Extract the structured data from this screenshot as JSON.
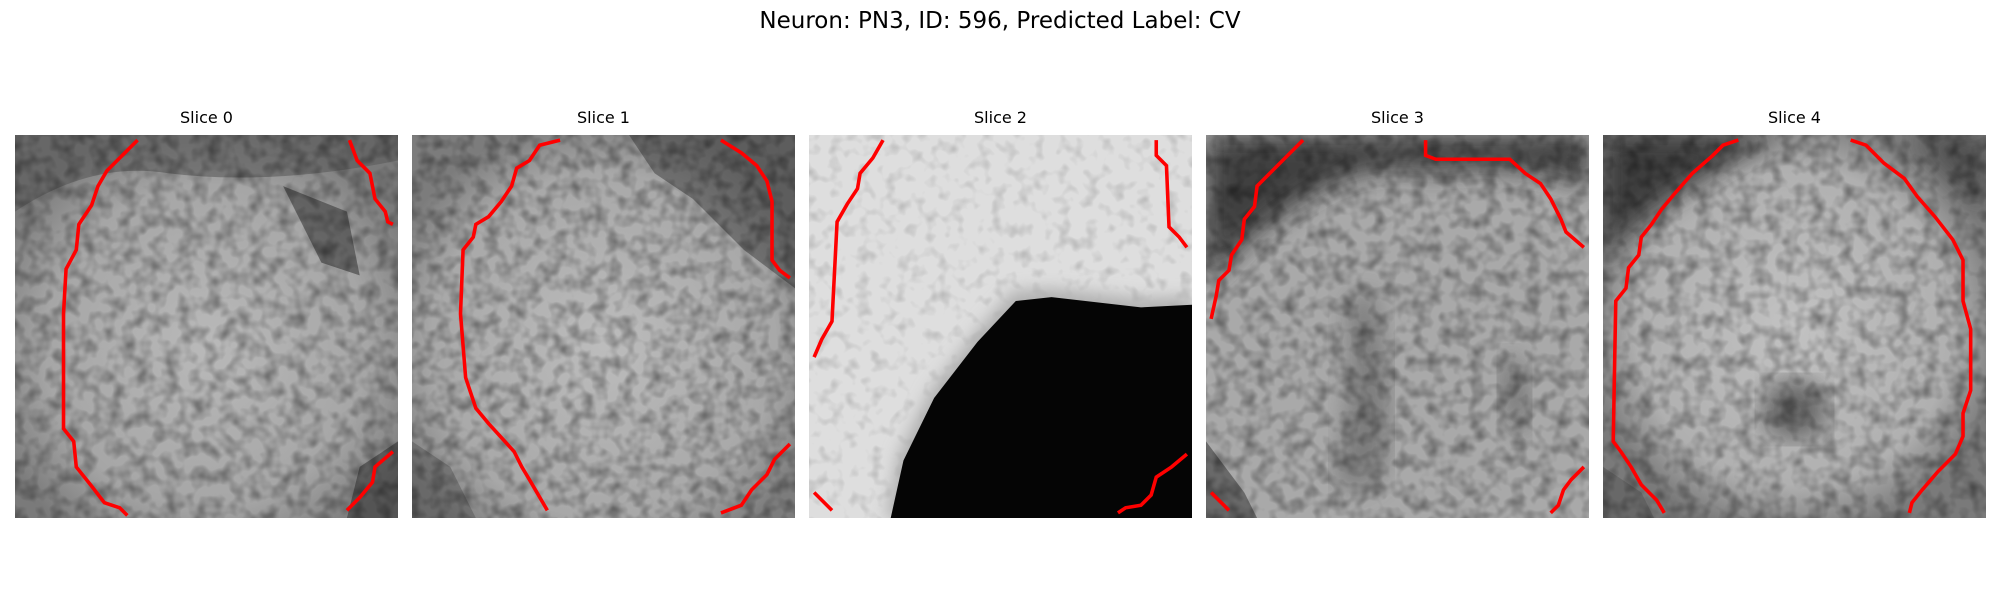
{
  "figure": {
    "title": "Neuron: PN3, ID: 596, Predicted Label: CV"
  },
  "contour_color": "#ff0000",
  "panels": [
    {
      "title": "Slice 0"
    },
    {
      "title": "Slice 1"
    },
    {
      "title": "Slice 2"
    },
    {
      "title": "Slice 3"
    },
    {
      "title": "Slice 4"
    }
  ]
}
